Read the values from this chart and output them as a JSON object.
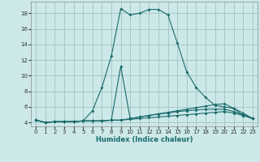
{
  "xlabel": "Humidex (Indice chaleur)",
  "bg_color": "#cce8e8",
  "grid_color": "#99bbbb",
  "line_color": "#1a6b6b",
  "xlim": [
    -0.5,
    23.5
  ],
  "ylim": [
    3.5,
    19.5
  ],
  "xticks": [
    0,
    1,
    2,
    3,
    4,
    5,
    6,
    7,
    8,
    9,
    10,
    11,
    12,
    13,
    14,
    15,
    16,
    17,
    18,
    19,
    20,
    21,
    22,
    23
  ],
  "yticks": [
    4,
    6,
    8,
    10,
    12,
    14,
    16,
    18
  ],
  "curve1_x": [
    0,
    1,
    2,
    3,
    4,
    5,
    6,
    7,
    8,
    9,
    10,
    11,
    12,
    13,
    14,
    15,
    16,
    17,
    18,
    19,
    20,
    21,
    22,
    23
  ],
  "curve1_y": [
    4.3,
    4.0,
    4.1,
    4.1,
    4.1,
    4.2,
    5.5,
    8.5,
    12.5,
    18.6,
    17.8,
    18.0,
    18.5,
    18.5,
    17.8,
    14.2,
    10.5,
    8.5,
    7.2,
    6.2,
    6.0,
    5.8,
    4.9,
    4.5
  ],
  "curve2_x": [
    0,
    1,
    2,
    3,
    4,
    5,
    6,
    7,
    8,
    9,
    10,
    11,
    12,
    13,
    14,
    15,
    16,
    17,
    18,
    19,
    20,
    21,
    22,
    23
  ],
  "curve2_y": [
    4.3,
    4.0,
    4.1,
    4.1,
    4.1,
    4.2,
    4.2,
    4.2,
    4.3,
    11.2,
    4.5,
    4.7,
    4.9,
    5.1,
    5.3,
    5.5,
    5.7,
    5.9,
    6.1,
    6.3,
    6.4,
    5.8,
    5.2,
    4.5
  ],
  "curve3_x": [
    0,
    1,
    2,
    3,
    4,
    5,
    6,
    7,
    8,
    9,
    10,
    11,
    12,
    13,
    14,
    15,
    16,
    17,
    18,
    19,
    20,
    21,
    22,
    23
  ],
  "curve3_y": [
    4.3,
    4.0,
    4.1,
    4.1,
    4.1,
    4.2,
    4.2,
    4.2,
    4.3,
    4.3,
    4.5,
    4.7,
    4.9,
    5.1,
    5.2,
    5.4,
    5.5,
    5.6,
    5.7,
    5.7,
    5.7,
    5.4,
    5.0,
    4.5
  ],
  "curve4_x": [
    0,
    1,
    2,
    3,
    4,
    5,
    6,
    7,
    8,
    9,
    10,
    11,
    12,
    13,
    14,
    15,
    16,
    17,
    18,
    19,
    20,
    21,
    22,
    23
  ],
  "curve4_y": [
    4.3,
    4.0,
    4.1,
    4.1,
    4.1,
    4.2,
    4.2,
    4.2,
    4.3,
    4.3,
    4.4,
    4.5,
    4.6,
    4.7,
    4.8,
    4.9,
    5.0,
    5.1,
    5.2,
    5.3,
    5.4,
    5.2,
    4.9,
    4.5
  ]
}
